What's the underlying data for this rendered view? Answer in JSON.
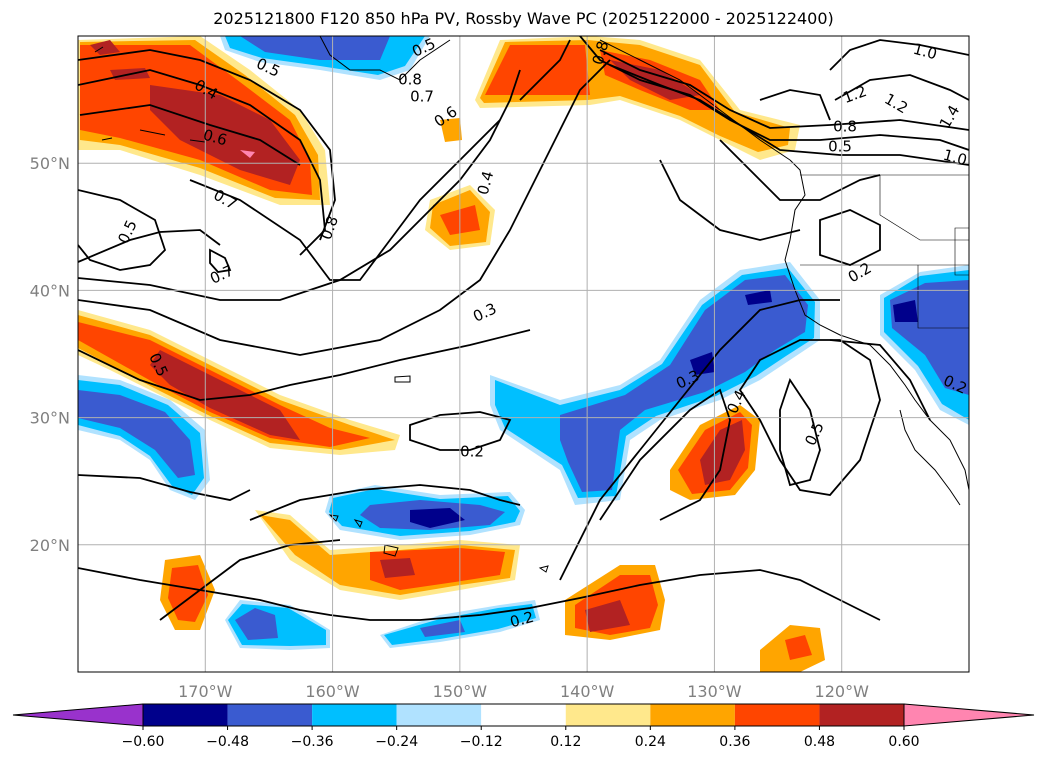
{
  "title": "2025121800 F120 850 hPa PV, Rossby Wave PC (2025122000 - 2025122400)",
  "map": {
    "lat_labels": [
      {
        "text": "50°N",
        "lat": 50
      },
      {
        "text": "40°N",
        "lat": 40
      },
      {
        "text": "30°N",
        "lat": 30
      },
      {
        "text": "20°N",
        "lat": 20
      }
    ],
    "lon_labels": [
      {
        "text": "170°W",
        "lon": -170
      },
      {
        "text": "160°W",
        "lon": -160
      },
      {
        "text": "150°W",
        "lon": -150
      },
      {
        "text": "140°W",
        "lon": -140
      },
      {
        "text": "130°W",
        "lon": -130
      },
      {
        "text": "120°W",
        "lon": -120
      }
    ],
    "extent": {
      "lon_min": -180,
      "lon_max": -110,
      "lat_min": 10,
      "lat_max": 60
    },
    "gridlines": true,
    "axis_label_color": "#808080"
  },
  "contour_labels": [
    "0.5",
    "0.4",
    "0.6",
    "0.7",
    "0.8",
    "0.7",
    "0.5",
    "0.5",
    "0.8",
    "0.7",
    "0.6",
    "0.4",
    "0.8",
    "1.0",
    "1.2",
    "1.2",
    "1.4",
    "1.0",
    "0.8",
    "0.5",
    "0.2",
    "0.3",
    "0.3",
    "0.4",
    "0.5",
    "0.2",
    "0.2",
    "0.2",
    "0.5"
  ],
  "colorbar": {
    "ticks": [
      "−0.60",
      "−0.48",
      "−0.36",
      "−0.24",
      "−0.12",
      "0.12",
      "0.24",
      "0.36",
      "0.48",
      "0.60"
    ],
    "colors": [
      "#9932cc",
      "#00008b",
      "#3a5bd0",
      "#00bfff",
      "#b0e2ff",
      "#ffffff",
      "#ffe88c",
      "#ffa500",
      "#ff4500",
      "#b22222",
      "#ff85b0"
    ],
    "extend": "both"
  }
}
